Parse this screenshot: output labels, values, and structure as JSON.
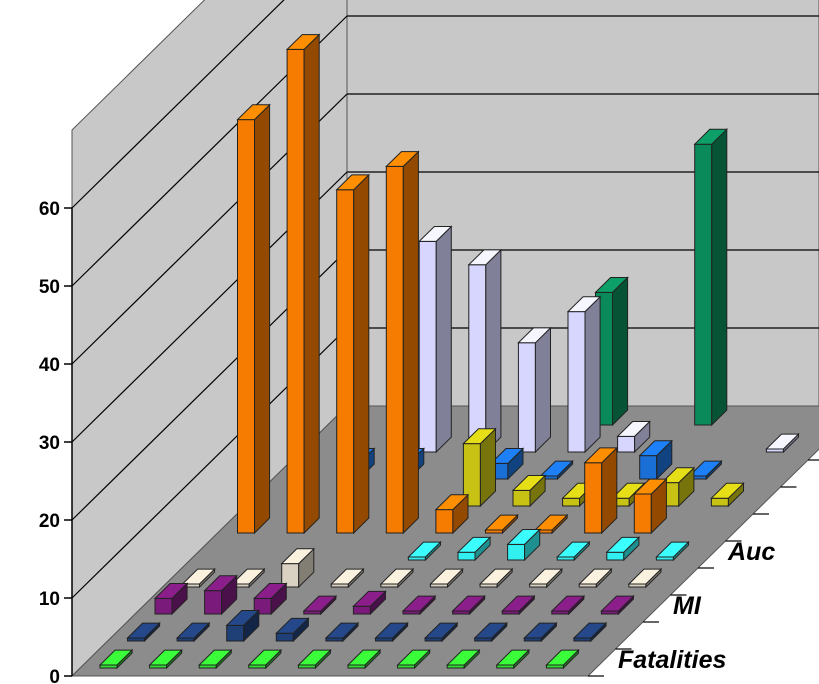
{
  "chart_data": {
    "type": "bar",
    "variant": "3d-column",
    "title": "",
    "ylim": [
      0,
      60
    ],
    "yticks": [
      "0",
      "10",
      "20",
      "30",
      "40",
      "50",
      "60"
    ],
    "series_labels": [
      "Fatalities",
      "MI",
      "Auc"
    ],
    "columns": 10,
    "grid": true,
    "colors": {
      "wall": "#c8c8c8",
      "floor": "#8c8c8c",
      "orange": "#f57c00",
      "lavender": "#d6d6ff",
      "green": "#0a8a5a",
      "purple": "#7a1a7a",
      "navy": "#1f3f77",
      "blue": "#1a6fd6",
      "olive": "#c8c214",
      "cyan": "#33f0f0",
      "gray": "#d9d2c2",
      "lime": "#33dd33"
    },
    "bars": [
      {
        "row": 0,
        "col": 0,
        "value": 0,
        "color": "lime"
      },
      {
        "row": 0,
        "col": 1,
        "value": 0,
        "color": "lime"
      },
      {
        "row": 0,
        "col": 2,
        "value": 0,
        "color": "lime"
      },
      {
        "row": 0,
        "col": 3,
        "value": 0,
        "color": "lime"
      },
      {
        "row": 0,
        "col": 4,
        "value": 0,
        "color": "lime"
      },
      {
        "row": 0,
        "col": 5,
        "value": 0,
        "color": "lime"
      },
      {
        "row": 0,
        "col": 6,
        "value": 0,
        "color": "lime"
      },
      {
        "row": 0,
        "col": 7,
        "value": 0,
        "color": "lime"
      },
      {
        "row": 0,
        "col": 8,
        "value": 0,
        "color": "lime"
      },
      {
        "row": 0,
        "col": 9,
        "value": 0,
        "color": "lime"
      },
      {
        "row": 1,
        "col": 0,
        "value": 0,
        "color": "navy"
      },
      {
        "row": 1,
        "col": 1,
        "value": 0,
        "color": "navy"
      },
      {
        "row": 1,
        "col": 2,
        "value": 2,
        "color": "navy"
      },
      {
        "row": 1,
        "col": 3,
        "value": 1,
        "color": "navy"
      },
      {
        "row": 1,
        "col": 4,
        "value": 0,
        "color": "navy"
      },
      {
        "row": 1,
        "col": 5,
        "value": 0,
        "color": "navy"
      },
      {
        "row": 1,
        "col": 6,
        "value": 0,
        "color": "navy"
      },
      {
        "row": 1,
        "col": 7,
        "value": 0,
        "color": "navy"
      },
      {
        "row": 1,
        "col": 8,
        "value": 0,
        "color": "navy"
      },
      {
        "row": 1,
        "col": 9,
        "value": 0,
        "color": "navy"
      },
      {
        "row": 2,
        "col": 0,
        "value": 2,
        "color": "purple"
      },
      {
        "row": 2,
        "col": 1,
        "value": 3,
        "color": "purple"
      },
      {
        "row": 2,
        "col": 2,
        "value": 2,
        "color": "purple"
      },
      {
        "row": 2,
        "col": 3,
        "value": 0,
        "color": "purple"
      },
      {
        "row": 2,
        "col": 4,
        "value": 1,
        "color": "purple"
      },
      {
        "row": 2,
        "col": 5,
        "value": 0,
        "color": "purple"
      },
      {
        "row": 2,
        "col": 6,
        "value": 0,
        "color": "purple"
      },
      {
        "row": 2,
        "col": 7,
        "value": 0,
        "color": "purple"
      },
      {
        "row": 2,
        "col": 8,
        "value": 0,
        "color": "purple"
      },
      {
        "row": 2,
        "col": 9,
        "value": 0,
        "color": "purple"
      },
      {
        "row": 3,
        "col": 0,
        "value": 0,
        "color": "gray"
      },
      {
        "row": 3,
        "col": 1,
        "value": 0,
        "color": "gray"
      },
      {
        "row": 3,
        "col": 2,
        "value": 3,
        "color": "gray"
      },
      {
        "row": 3,
        "col": 3,
        "value": 0,
        "color": "gray"
      },
      {
        "row": 3,
        "col": 4,
        "value": 0,
        "color": "gray"
      },
      {
        "row": 3,
        "col": 5,
        "value": 0,
        "color": "gray"
      },
      {
        "row": 3,
        "col": 6,
        "value": 0,
        "color": "gray"
      },
      {
        "row": 3,
        "col": 7,
        "value": 0,
        "color": "gray"
      },
      {
        "row": 3,
        "col": 8,
        "value": 0,
        "color": "gray"
      },
      {
        "row": 3,
        "col": 9,
        "value": 0,
        "color": "gray"
      },
      {
        "row": 4,
        "col": 4,
        "value": 0,
        "color": "cyan"
      },
      {
        "row": 4,
        "col": 5,
        "value": 1,
        "color": "cyan"
      },
      {
        "row": 4,
        "col": 6,
        "value": 2,
        "color": "cyan"
      },
      {
        "row": 4,
        "col": 7,
        "value": 0,
        "color": "cyan"
      },
      {
        "row": 4,
        "col": 8,
        "value": 1,
        "color": "cyan"
      },
      {
        "row": 4,
        "col": 9,
        "value": 0,
        "color": "cyan"
      },
      {
        "row": 5,
        "col": 0,
        "value": 53,
        "color": "orange"
      },
      {
        "row": 5,
        "col": 1,
        "value": 62,
        "color": "orange"
      },
      {
        "row": 5,
        "col": 2,
        "value": 44,
        "color": "orange"
      },
      {
        "row": 5,
        "col": 3,
        "value": 47,
        "color": "orange"
      },
      {
        "row": 5,
        "col": 4,
        "value": 3,
        "color": "orange"
      },
      {
        "row": 5,
        "col": 5,
        "value": 0,
        "color": "orange"
      },
      {
        "row": 5,
        "col": 6,
        "value": 0,
        "color": "orange"
      },
      {
        "row": 5,
        "col": 7,
        "value": 9,
        "color": "orange"
      },
      {
        "row": 5,
        "col": 8,
        "value": 5,
        "color": "orange"
      },
      {
        "row": 6,
        "col": 4,
        "value": 8,
        "color": "olive"
      },
      {
        "row": 6,
        "col": 5,
        "value": 2,
        "color": "olive"
      },
      {
        "row": 6,
        "col": 6,
        "value": 1,
        "color": "olive"
      },
      {
        "row": 6,
        "col": 7,
        "value": 1,
        "color": "olive"
      },
      {
        "row": 6,
        "col": 8,
        "value": 3,
        "color": "olive"
      },
      {
        "row": 6,
        "col": 9,
        "value": 1,
        "color": "olive"
      },
      {
        "row": 7,
        "col": 1,
        "value": 2,
        "color": "blue"
      },
      {
        "row": 7,
        "col": 2,
        "value": 2,
        "color": "blue"
      },
      {
        "row": 7,
        "col": 4,
        "value": 2,
        "color": "blue"
      },
      {
        "row": 7,
        "col": 5,
        "value": 0,
        "color": "blue"
      },
      {
        "row": 7,
        "col": 7,
        "value": 3,
        "color": "blue"
      },
      {
        "row": 7,
        "col": 8,
        "value": 0,
        "color": "blue"
      },
      {
        "row": 8,
        "col": 2,
        "value": 27,
        "color": "lavender"
      },
      {
        "row": 8,
        "col": 3,
        "value": 24,
        "color": "lavender"
      },
      {
        "row": 8,
        "col": 4,
        "value": 14,
        "color": "lavender"
      },
      {
        "row": 8,
        "col": 5,
        "value": 18,
        "color": "lavender"
      },
      {
        "row": 8,
        "col": 6,
        "value": 2,
        "color": "lavender"
      },
      {
        "row": 8,
        "col": 9,
        "value": 0,
        "color": "lavender"
      },
      {
        "row": 9,
        "col": 5,
        "value": 17,
        "color": "green"
      },
      {
        "row": 9,
        "col": 7,
        "value": 36,
        "color": "green"
      }
    ]
  }
}
